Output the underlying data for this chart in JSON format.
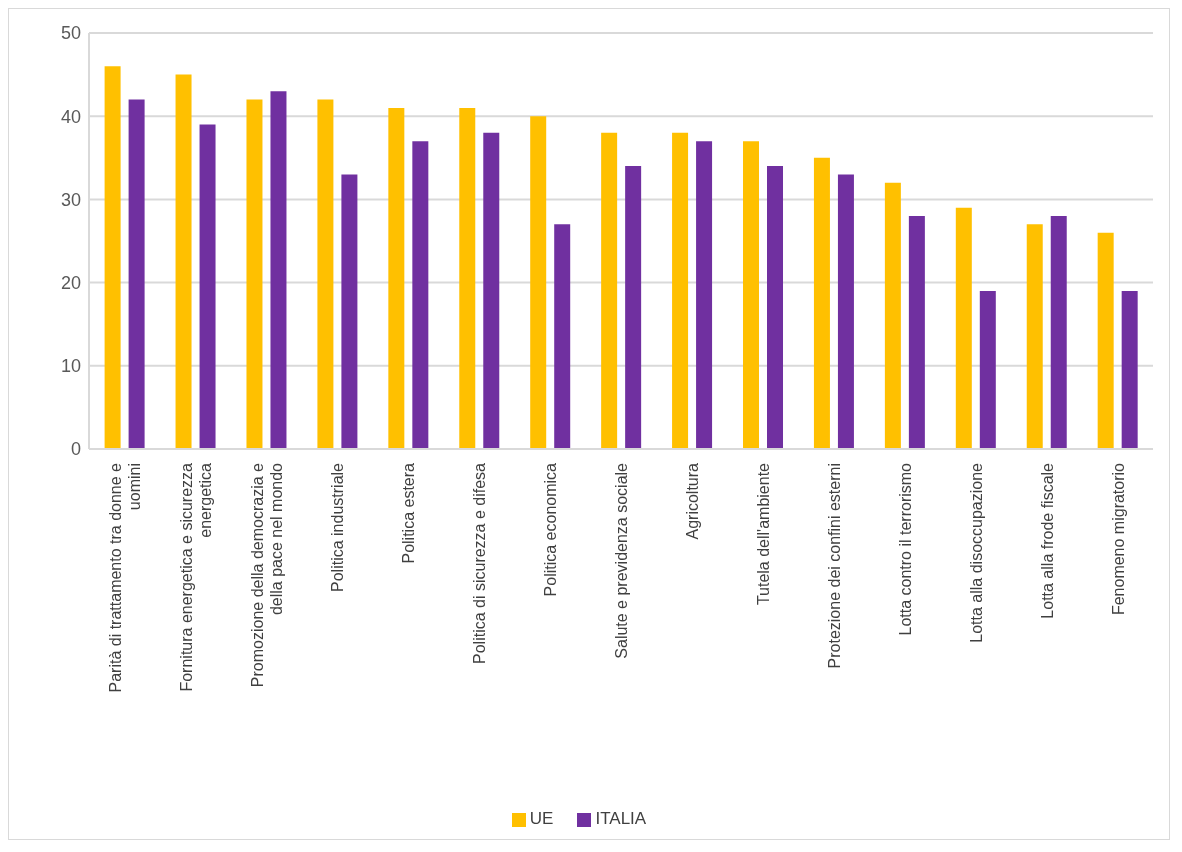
{
  "chart_data": {
    "type": "bar",
    "categories": [
      "Parità di trattamento tra donne e uomini",
      "Fornitura energetica e sicurezza energetica",
      "Promozione della democrazia e della pace nel mondo",
      "Politica industriale",
      "Politica estera",
      "Politica di sicurezza e difesa",
      "Politica economica",
      "Salute e previdenza sociale",
      "Agricoltura",
      "Tutela dell'ambiente",
      "Protezione dei confini esterni",
      "Lotta contro il terrorismo",
      "Lotta alla disoccupazione",
      "Lotta alla frode fiscale",
      "Fenomeno migratorio"
    ],
    "series": [
      {
        "name": "UE",
        "color": "#ffc000",
        "values": [
          46,
          45,
          42,
          42,
          41,
          41,
          40,
          38,
          38,
          37,
          35,
          32,
          29,
          27,
          26
        ]
      },
      {
        "name": "ITALIA",
        "color": "#7030a0",
        "values": [
          42,
          39,
          43,
          33,
          37,
          38,
          27,
          34,
          37,
          34,
          33,
          28,
          19,
          28,
          19
        ]
      }
    ],
    "ylim": [
      0,
      50
    ],
    "yticks": [
      0,
      10,
      20,
      30,
      40,
      50
    ],
    "grid": "y",
    "legend": "bottom"
  }
}
